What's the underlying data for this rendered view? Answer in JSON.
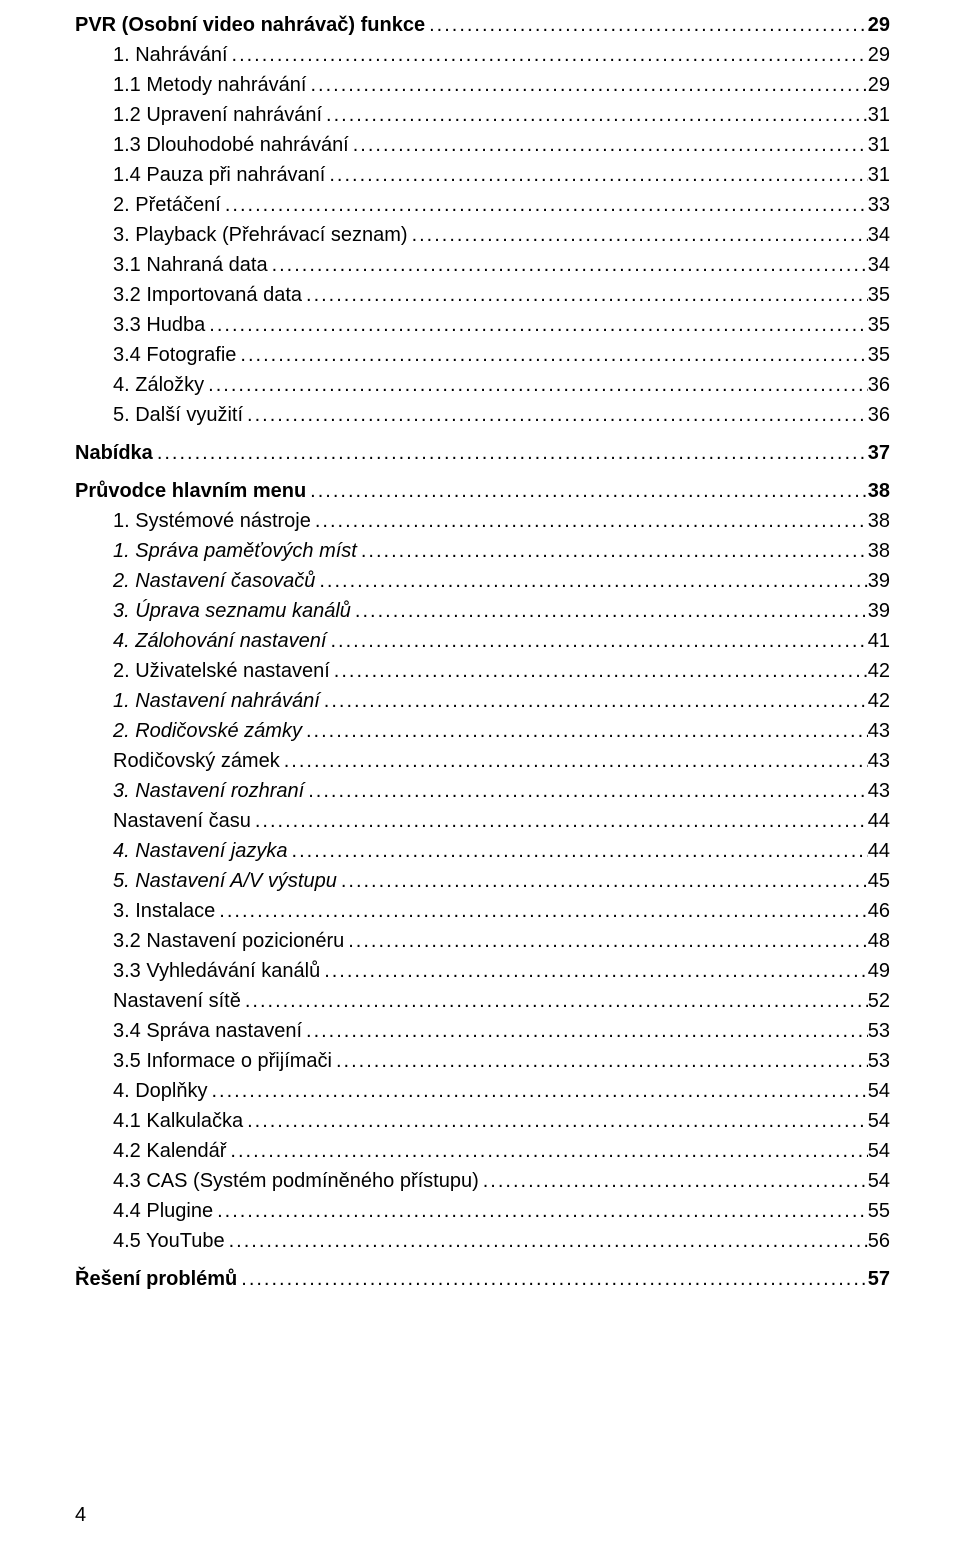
{
  "toc": [
    {
      "label": "PVR (Osobní video nahrávač) funkce",
      "page": "29",
      "bold": true,
      "indent": 0,
      "italic": false
    },
    {
      "label": "1.   Nahrávání",
      "page": "29",
      "bold": false,
      "indent": 1,
      "italic": false
    },
    {
      "label": "1.1   Metody nahrávání",
      "page": "29",
      "bold": false,
      "indent": 1,
      "italic": false
    },
    {
      "label": "1.2   Upravení nahrávání",
      "page": "31",
      "bold": false,
      "indent": 1,
      "italic": false
    },
    {
      "label": "1.3   Dlouhodobé nahrávání",
      "page": "31",
      "bold": false,
      "indent": 1,
      "italic": false
    },
    {
      "label": "1.4   Pauza při nahrávaní",
      "page": "31",
      "bold": false,
      "indent": 1,
      "italic": false
    },
    {
      "label": "2.   Přetáčení",
      "page": "33",
      "bold": false,
      "indent": 1,
      "italic": false
    },
    {
      "label": "3.   Playback (Přehrávací seznam)",
      "page": "34",
      "bold": false,
      "indent": 1,
      "italic": false
    },
    {
      "label": "3.1   Nahraná data",
      "page": "34",
      "bold": false,
      "indent": 1,
      "italic": false
    },
    {
      "label": "3.2   Importovaná data",
      "page": "35",
      "bold": false,
      "indent": 1,
      "italic": false
    },
    {
      "label": "3.3   Hudba",
      "page": "35",
      "bold": false,
      "indent": 1,
      "italic": false
    },
    {
      "label": "3.4   Fotografie",
      "page": "35",
      "bold": false,
      "indent": 1,
      "italic": false
    },
    {
      "label": "4.   Záložky",
      "page": "36",
      "bold": false,
      "indent": 1,
      "italic": false
    },
    {
      "label": "5.   Další využití",
      "page": "36",
      "bold": false,
      "indent": 1,
      "italic": false
    },
    {
      "label": "Nabídka",
      "page": "37",
      "bold": true,
      "indent": 0,
      "italic": false
    },
    {
      "label": "Průvodce hlavním menu",
      "page": "38",
      "bold": true,
      "indent": 0,
      "italic": false
    },
    {
      "label": "1.   Systémové nástroje",
      "page": "38",
      "bold": false,
      "indent": 1,
      "italic": false
    },
    {
      "label": "1.    Správa paměťových míst",
      "page": "38",
      "bold": false,
      "indent": 1,
      "italic": true
    },
    {
      "label": "2.    Nastavení časovačů",
      "page": "39",
      "bold": false,
      "indent": 1,
      "italic": true
    },
    {
      "label": "3.    Úprava seznamu kanálů",
      "page": "39",
      "bold": false,
      "indent": 1,
      "italic": true
    },
    {
      "label": "4.    Zálohování nastavení",
      "page": "41",
      "bold": false,
      "indent": 1,
      "italic": true
    },
    {
      "label": "2.   Uživatelské nastavení",
      "page": "42",
      "bold": false,
      "indent": 1,
      "italic": false
    },
    {
      "label": "1.    Nastavení nahrávání",
      "page": "42",
      "bold": false,
      "indent": 1,
      "italic": true
    },
    {
      "label": "2.    Rodičovské zámky",
      "page": "43",
      "bold": false,
      "indent": 1,
      "italic": true
    },
    {
      "label": "Rodičovský zámek",
      "page": "43",
      "bold": false,
      "indent": 1,
      "italic": false
    },
    {
      "label": "3.    Nastavení rozhraní",
      "page": "43",
      "bold": false,
      "indent": 1,
      "italic": true
    },
    {
      "label": "Nastavení času",
      "page": "44",
      "bold": false,
      "indent": 1,
      "italic": false
    },
    {
      "label": "4.    Nastavení jazyka",
      "page": "44",
      "bold": false,
      "indent": 1,
      "italic": true
    },
    {
      "label": "5.    Nastavení A/V výstupu",
      "page": "45",
      "bold": false,
      "indent": 1,
      "italic": true
    },
    {
      "label": "3.   Instalace",
      "page": "46",
      "bold": false,
      "indent": 1,
      "italic": false
    },
    {
      "label": "3.2    Nastavení pozicionéru",
      "page": "48",
      "bold": false,
      "indent": 1,
      "italic": false
    },
    {
      "label": "3.3   Vyhledávání kanálů",
      "page": "49",
      "bold": false,
      "indent": 1,
      "italic": false
    },
    {
      "label": "Nastavení sítě",
      "page": "52",
      "bold": false,
      "indent": 1,
      "italic": false
    },
    {
      "label": "3.4   Správa nastavení",
      "page": "53",
      "bold": false,
      "indent": 1,
      "italic": false
    },
    {
      "label": "3.5   Informace o přijímači",
      "page": "53",
      "bold": false,
      "indent": 1,
      "italic": false
    },
    {
      "label": "4.   Doplňky",
      "page": "54",
      "bold": false,
      "indent": 1,
      "italic": false
    },
    {
      "label": "4.1   Kalkulačka",
      "page": "54",
      "bold": false,
      "indent": 1,
      "italic": false
    },
    {
      "label": "4.2   Kalendář",
      "page": "54",
      "bold": false,
      "indent": 1,
      "italic": false
    },
    {
      "label": "4.3   CAS (Systém podmíněného přístupu)",
      "page": "54",
      "bold": false,
      "indent": 1,
      "italic": false
    },
    {
      "label": "4.4   Plugine",
      "page": "55",
      "bold": false,
      "indent": 1,
      "italic": false
    },
    {
      "label": "4.5   YouTube",
      "page": "56",
      "bold": false,
      "indent": 1,
      "italic": false
    },
    {
      "label": "Řešení problémů",
      "page": "57",
      "bold": true,
      "indent": 0,
      "italic": false
    }
  ],
  "pageNumber": "4"
}
